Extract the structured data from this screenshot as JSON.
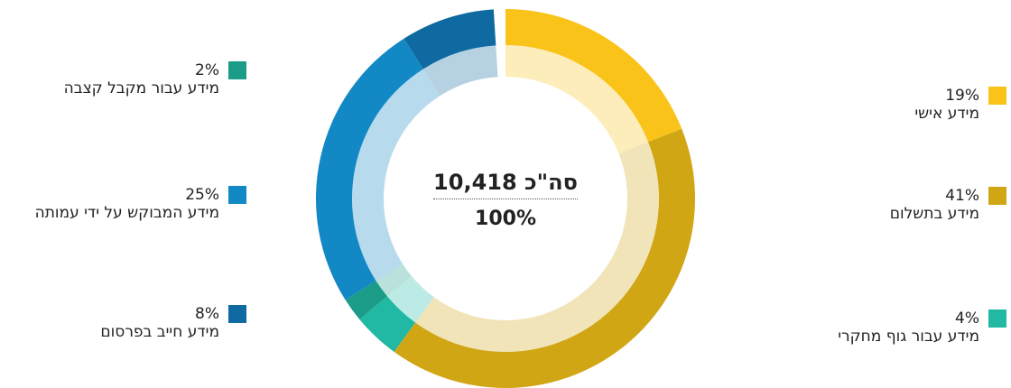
{
  "chart_data": {
    "type": "donut",
    "center_title": "סה\"כ 10,418",
    "center_value": "100%",
    "categories": [
      "מידע אישי",
      "מידע בתשלום",
      "מידע עבור גוף מחקרי",
      "מידע עבור מקבל קצבה",
      "מידע המבוקש על ידי עמותה",
      "מידע חייב בפרסום"
    ],
    "values": [
      19,
      41,
      4,
      2,
      25,
      8
    ],
    "value_labels": [
      "19%",
      "41%",
      "4%",
      "2%",
      "25%",
      "8%"
    ],
    "colors": [
      "#f9c319",
      "#d1a614",
      "#21b8a4",
      "#1a9c88",
      "#1288c4",
      "#0e6aa0"
    ]
  }
}
